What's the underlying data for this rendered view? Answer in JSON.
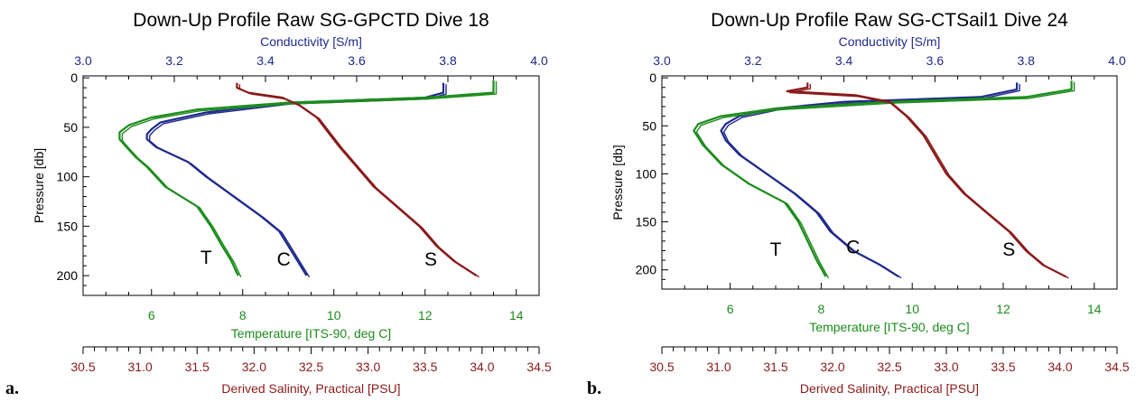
{
  "figure": {
    "panel_labels": [
      "a.",
      "b."
    ]
  },
  "chart_data": [
    {
      "type": "line",
      "title": "Down-Up Profile Raw SG-GPCTD Dive 18",
      "ylabel": "Pressure [db]",
      "yticks": [
        0,
        50,
        100,
        150,
        200
      ],
      "ylim": [
        -2,
        220
      ],
      "y_inverted": true,
      "axes": {
        "conductivity": {
          "label": "Conductivity [S/m]",
          "range": [
            3.0,
            4.0
          ],
          "ticks": [
            "3.0",
            "3.2",
            "3.4",
            "3.6",
            "3.8",
            "4.0"
          ],
          "color": "#1f2a8c"
        },
        "temperature": {
          "label": "Temperature [ITS-90, deg C]",
          "range": [
            4.5,
            14.5
          ],
          "ticks": [
            "6",
            "8",
            "10",
            "12",
            "14"
          ],
          "color": "#1c8c1c"
        },
        "salinity": {
          "label": "Derived Salinity, Practical [PSU]",
          "range": [
            30.5,
            34.5
          ],
          "ticks": [
            "30.5",
            "31.0",
            "31.5",
            "32.0",
            "32.5",
            "33.0",
            "33.5",
            "34.0",
            "34.5"
          ],
          "color": "#8b1a1a"
        }
      },
      "annotations": [
        {
          "text": "T",
          "x": 7.2,
          "y": 188,
          "axis": "temperature"
        },
        {
          "text": "C",
          "x": 3.44,
          "y": 190,
          "axis": "conductivity"
        },
        {
          "text": "S",
          "x": 33.55,
          "y": 190,
          "axis": "salinity"
        }
      ],
      "series": [
        {
          "axis": "conductivity",
          "color": "#1f2a8c",
          "y": [
            5,
            15,
            20,
            25,
            35,
            45,
            52,
            57,
            62,
            70,
            85,
            100,
            120,
            140,
            155,
            170,
            185,
            200
          ],
          "x": [
            3.79,
            3.79,
            3.75,
            3.45,
            3.27,
            3.17,
            3.15,
            3.14,
            3.14,
            3.16,
            3.23,
            3.27,
            3.33,
            3.39,
            3.43,
            3.45,
            3.47,
            3.49
          ]
        },
        {
          "axis": "temperature",
          "color": "#1c8c1c",
          "y": [
            2,
            15,
            20,
            25,
            32,
            40,
            48,
            55,
            62,
            70,
            80,
            90,
            110,
            130,
            150,
            170,
            185,
            200
          ],
          "x": [
            13.5,
            13.5,
            12.0,
            9.0,
            7.0,
            6.0,
            5.5,
            5.3,
            5.3,
            5.45,
            5.65,
            5.9,
            6.3,
            7.0,
            7.3,
            7.55,
            7.75,
            7.9
          ]
        },
        {
          "axis": "salinity",
          "color": "#8b1a1a",
          "y": [
            5,
            10,
            15,
            20,
            28,
            40,
            55,
            70,
            90,
            110,
            130,
            150,
            170,
            185,
            200
          ],
          "x": [
            31.85,
            31.85,
            31.95,
            32.25,
            32.4,
            32.55,
            32.65,
            32.75,
            32.9,
            33.05,
            33.25,
            33.45,
            33.6,
            33.75,
            33.95
          ]
        }
      ]
    },
    {
      "type": "line",
      "title": "Down-Up Profile Raw SG-CTSail1 Dive 24",
      "ylabel": "Pressure [db]",
      "yticks": [
        0,
        50,
        100,
        150,
        200
      ],
      "ylim": [
        -2,
        220
      ],
      "y_inverted": true,
      "axes": {
        "conductivity": {
          "label": "Conductivity [S/m]",
          "range": [
            3.0,
            4.0
          ],
          "ticks": [
            "3.0",
            "3.2",
            "3.4",
            "3.6",
            "3.8",
            "4.0"
          ],
          "color": "#1f2a8c"
        },
        "temperature": {
          "label": "Temperature [ITS-90, deg C]",
          "range": [
            4.5,
            14.5
          ],
          "ticks": [
            "6",
            "8",
            "10",
            "12",
            "14"
          ],
          "color": "#1c8c1c"
        },
        "salinity": {
          "label": "Derived Salinity, Practical [PSU]",
          "range": [
            30.5,
            34.5
          ],
          "ticks": [
            "30.5",
            "31.0",
            "31.5",
            "32.0",
            "32.5",
            "33.0",
            "33.5",
            "34.0",
            "34.5"
          ],
          "color": "#8b1a1a"
        }
      },
      "annotations": [
        {
          "text": "T",
          "x": 7.0,
          "y": 185,
          "axis": "temperature"
        },
        {
          "text": "C",
          "x": 3.42,
          "y": 183,
          "axis": "conductivity"
        },
        {
          "text": "S",
          "x": 33.55,
          "y": 185,
          "axis": "salinity"
        }
      ],
      "series": [
        {
          "axis": "conductivity",
          "color": "#1f2a8c",
          "y": [
            5,
            12,
            20,
            25,
            32,
            40,
            48,
            55,
            65,
            80,
            100,
            120,
            140,
            160,
            180,
            195,
            207
          ],
          "x": [
            3.78,
            3.78,
            3.7,
            3.4,
            3.25,
            3.17,
            3.14,
            3.13,
            3.14,
            3.17,
            3.23,
            3.29,
            3.34,
            3.37,
            3.42,
            3.48,
            3.52
          ]
        },
        {
          "axis": "temperature",
          "color": "#1c8c1c",
          "y": [
            3,
            12,
            20,
            25,
            32,
            40,
            48,
            55,
            70,
            90,
            110,
            130,
            150,
            170,
            190,
            207
          ],
          "x": [
            13.5,
            13.5,
            12.5,
            9.5,
            7.0,
            5.8,
            5.3,
            5.2,
            5.4,
            5.8,
            6.4,
            7.2,
            7.5,
            7.7,
            7.9,
            8.1
          ]
        },
        {
          "axis": "salinity",
          "color": "#8b1a1a",
          "y": [
            5,
            10,
            14,
            18,
            25,
            40,
            60,
            80,
            100,
            120,
            140,
            160,
            180,
            195,
            207
          ],
          "x": [
            31.78,
            31.78,
            31.6,
            32.2,
            32.5,
            32.65,
            32.8,
            32.9,
            33.0,
            33.15,
            33.35,
            33.55,
            33.7,
            33.85,
            34.05
          ]
        }
      ]
    }
  ]
}
